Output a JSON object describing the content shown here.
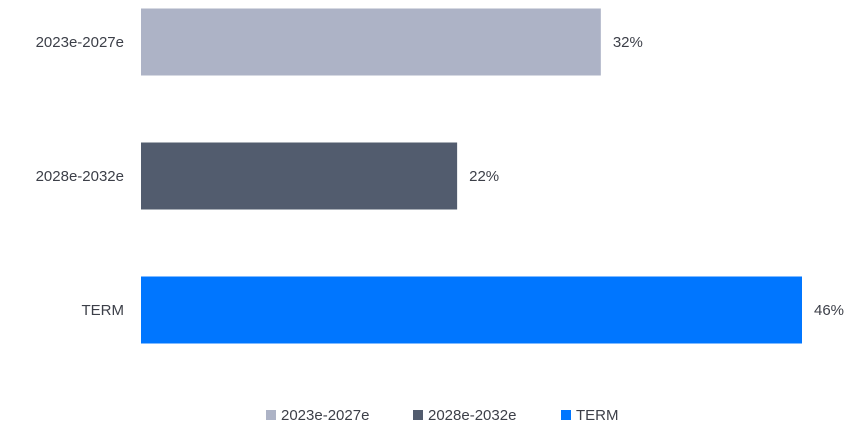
{
  "chart_data": {
    "type": "bar",
    "orientation": "horizontal",
    "categories": [
      "2023e-2027e",
      "2028e-2032e",
      "TERM"
    ],
    "values": [
      32,
      22,
      46
    ],
    "value_labels": [
      "32%",
      "22%",
      "46%"
    ],
    "colors": [
      "#adb3c6",
      "#525c6e",
      "#0076ff"
    ],
    "xlim": [
      0,
      46
    ],
    "grid": false,
    "legend": {
      "placement": "bottom-center",
      "entries": [
        {
          "label": "2023e-2027e",
          "color": "#adb3c6"
        },
        {
          "label": "2028e-2032e",
          "color": "#525c6e"
        },
        {
          "label": "TERM",
          "color": "#0076ff"
        }
      ]
    },
    "title": "",
    "xlabel": "",
    "ylabel": ""
  }
}
